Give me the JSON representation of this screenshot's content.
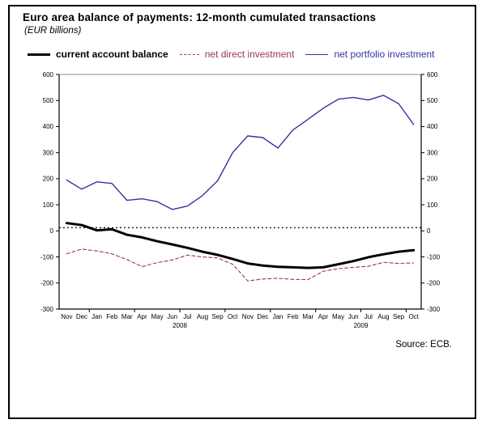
{
  "header": {
    "title": "Euro area balance of payments: 12-month cumulated transactions",
    "subtitle": "(EUR billions)"
  },
  "legend": [
    {
      "label": "current account balance",
      "color": "#000000",
      "bold": true,
      "line_style": "solid",
      "line_width": 3
    },
    {
      "label": "net direct investment",
      "color": "#993366",
      "bold": false,
      "line_style": "dashed",
      "line_width": 1
    },
    {
      "label": "net portfolio investment",
      "color": "#3333a8",
      "bold": false,
      "line_style": "solid",
      "line_width": 1.5
    }
  ],
  "source": "Source: ECB.",
  "chart_data": {
    "type": "line",
    "x_labels": [
      "Nov",
      "Dec",
      "Jan",
      "Feb",
      "Mar",
      "Apr",
      "May",
      "Jun",
      "Jul",
      "Aug",
      "Sep",
      "Oct",
      "Nov",
      "Dec",
      "Jan",
      "Feb",
      "Mar",
      "Apr",
      "May",
      "Jun",
      "Jul",
      "Aug",
      "Sep",
      "Oct"
    ],
    "year_labels": [
      {
        "label": "2008",
        "month_index": 7.5
      },
      {
        "label": "2009",
        "month_index": 19.5
      }
    ],
    "ylim": [
      -300,
      600
    ],
    "yticks": [
      600,
      500,
      400,
      300,
      200,
      100,
      0,
      -100,
      -200,
      -300
    ],
    "grid": false,
    "legend_position": "top",
    "reference_line": {
      "value": 12,
      "style": "dotted",
      "color": "#000000"
    },
    "series": [
      {
        "name": "current account balance",
        "color": "#000000",
        "width": 3,
        "dash": null,
        "values": [
          30,
          22,
          2,
          6,
          -15,
          -25,
          -40,
          -52,
          -65,
          -80,
          -92,
          -108,
          -125,
          -133,
          -138,
          -140,
          -142,
          -140,
          -128,
          -116,
          -101,
          -90,
          -80,
          -74
        ]
      },
      {
        "name": "net direct investment",
        "color": "#993366",
        "width": 1.1,
        "dash": "4 3",
        "values": [
          -88,
          -70,
          -77,
          -88,
          -110,
          -137,
          -122,
          -112,
          -93,
          -100,
          -104,
          -128,
          -192,
          -185,
          -182,
          -186,
          -187,
          -155,
          -145,
          -140,
          -136,
          -121,
          -125,
          -123
        ]
      },
      {
        "name": "net portfolio investment",
        "color": "#3333a8",
        "width": 1.4,
        "dash": null,
        "values": [
          195,
          160,
          188,
          182,
          117,
          123,
          112,
          82,
          95,
          135,
          192,
          300,
          364,
          358,
          318,
          387,
          428,
          470,
          505,
          512,
          502,
          520,
          488,
          408
        ]
      }
    ]
  }
}
